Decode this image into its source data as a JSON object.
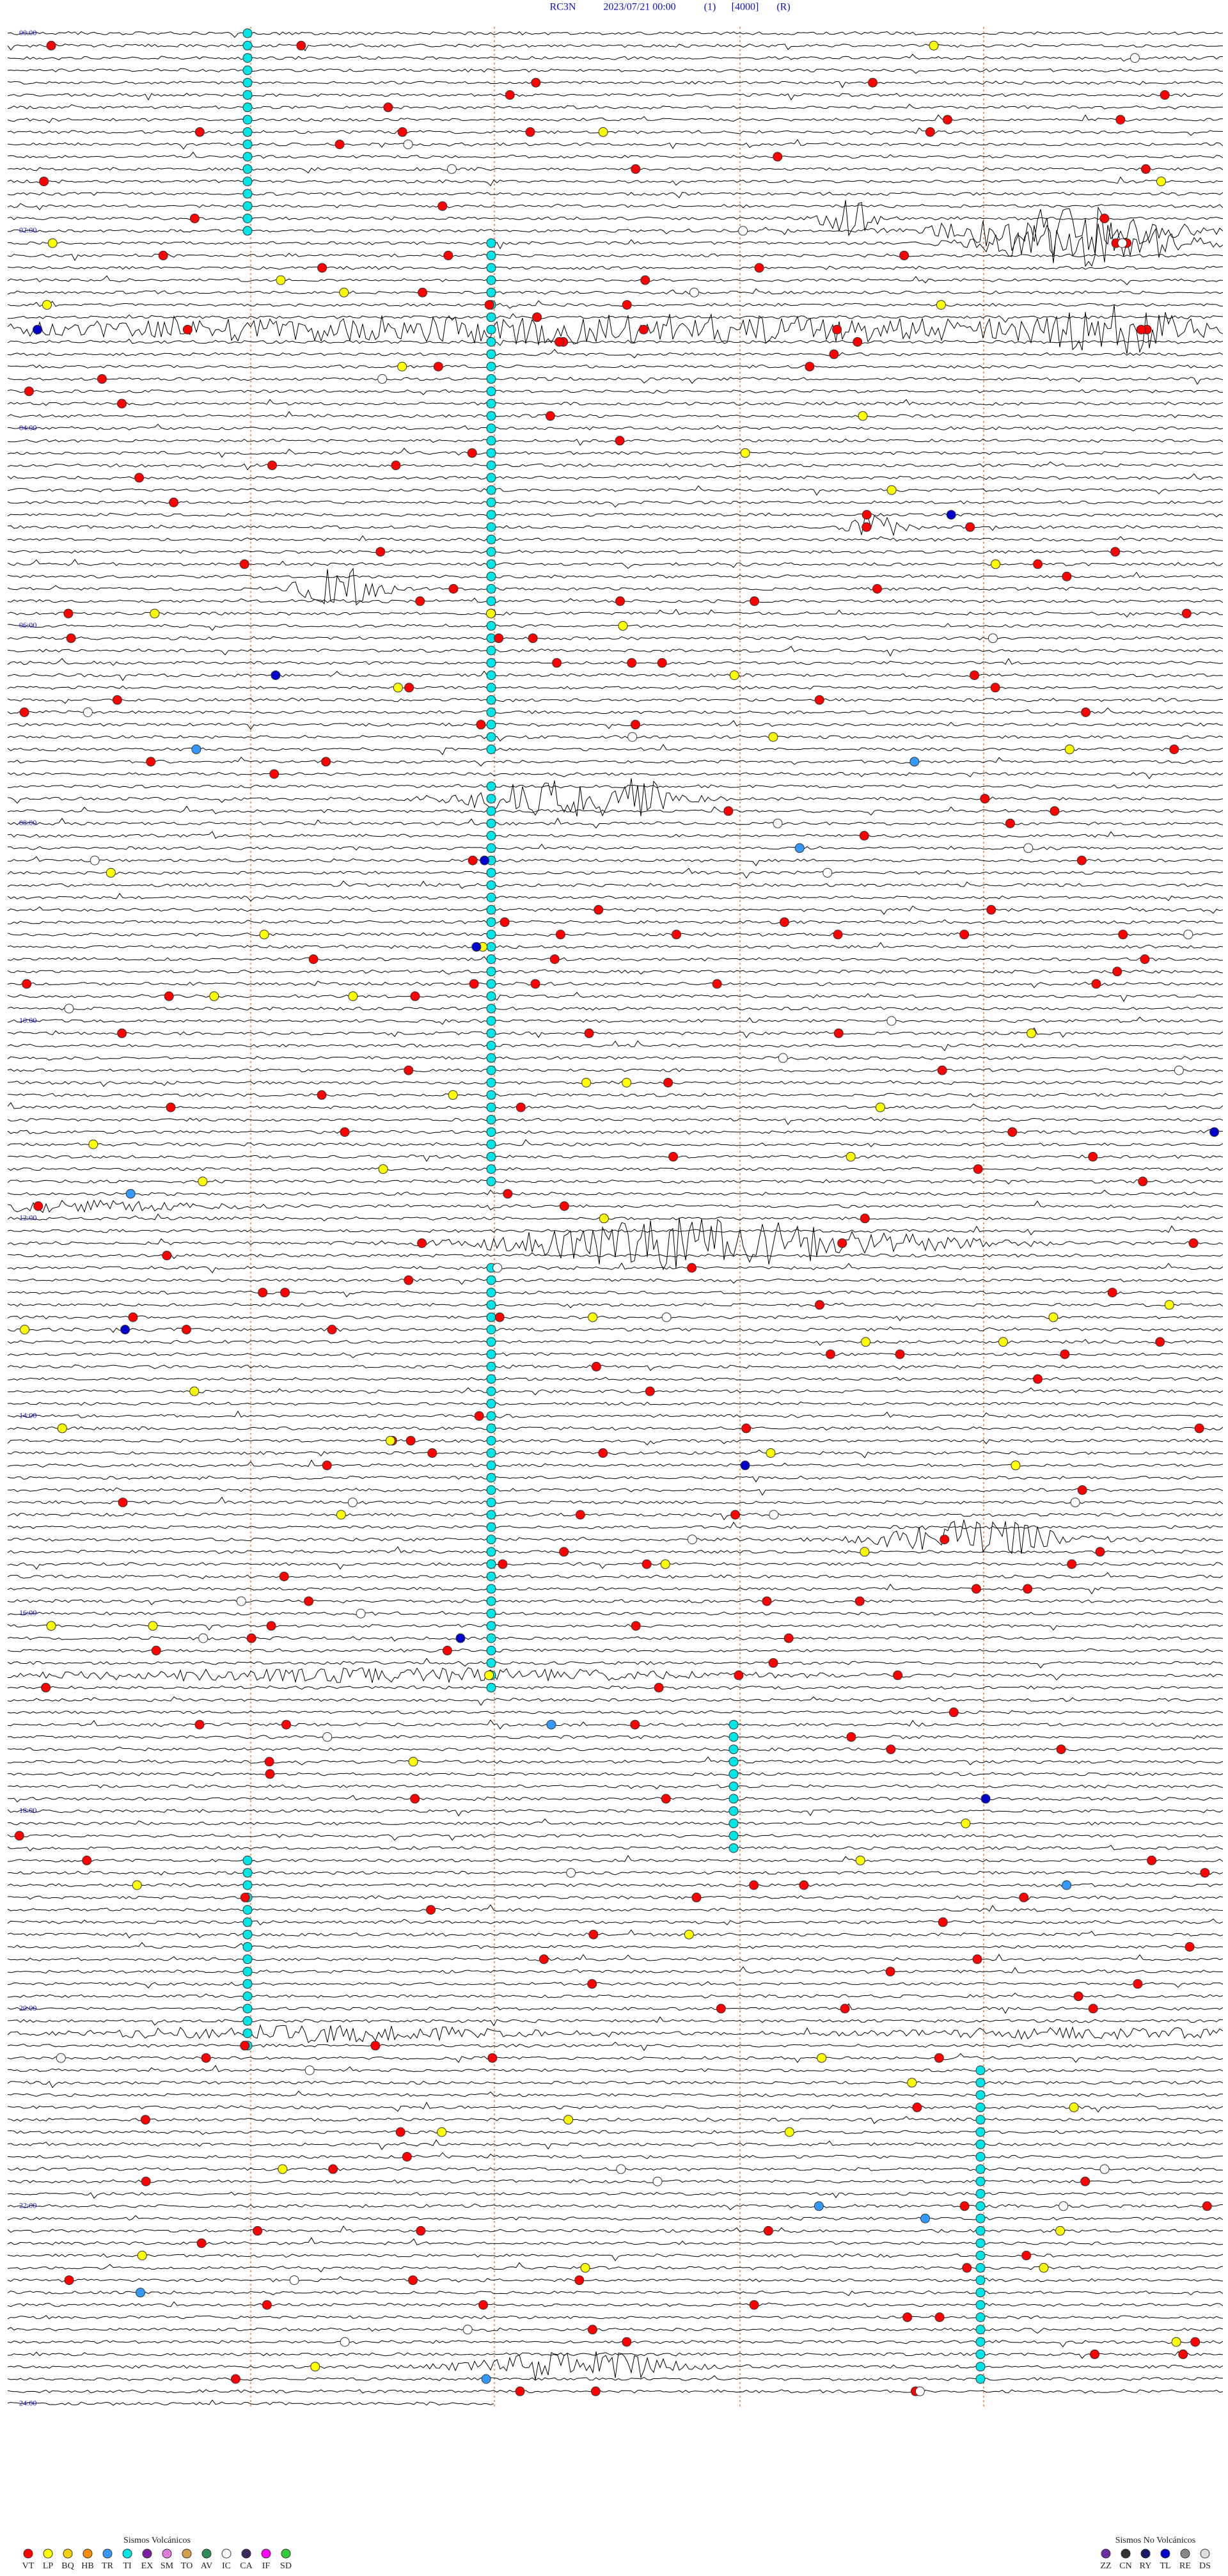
{
  "header": {
    "station": "RC3N",
    "datetime": "2023/07/21 00:00",
    "channel": "(1)",
    "scale": "[4000]",
    "mode": "(R)"
  },
  "hour_labels": [
    "00:00",
    "02:00",
    "04:00",
    "06:00",
    "08:00",
    "10:00",
    "12:00",
    "14:00",
    "16:00",
    "18:00",
    "20:00",
    "22:00",
    "24:00"
  ],
  "legend": {
    "volcanic": {
      "title": "Sismos Volcánicos",
      "items": [
        {
          "code": "VT",
          "color": "#ff0000"
        },
        {
          "code": "LP",
          "color": "#ffff00"
        },
        {
          "code": "BQ",
          "color": "#ffd000"
        },
        {
          "code": "HB",
          "color": "#ff8c00"
        },
        {
          "code": "TR",
          "color": "#3399ff"
        },
        {
          "code": "TI",
          "color": "#00e5e5"
        },
        {
          "code": "EX",
          "color": "#7a1fa2"
        },
        {
          "code": "SM",
          "color": "#e07be0"
        },
        {
          "code": "TO",
          "color": "#d2a04a"
        },
        {
          "code": "AV",
          "color": "#2e8b57"
        },
        {
          "code": "IC",
          "color": "#ffffff"
        },
        {
          "code": "CA",
          "color": "#3a2a5a"
        },
        {
          "code": "IF",
          "color": "#ff00ff"
        },
        {
          "code": "SD",
          "color": "#33cc33"
        }
      ]
    },
    "non_volcanic": {
      "title": "Sismos No Volcánicos",
      "items": [
        {
          "code": "ZZ",
          "color": "#6a2ca0"
        },
        {
          "code": "CN",
          "color": "#333333"
        },
        {
          "code": "RY",
          "color": "#1a1a66"
        },
        {
          "code": "TL",
          "color": "#0000cc"
        },
        {
          "code": "RE",
          "color": "#888888"
        },
        {
          "code": "DS",
          "color": "#dddddd"
        }
      ]
    }
  }
}
